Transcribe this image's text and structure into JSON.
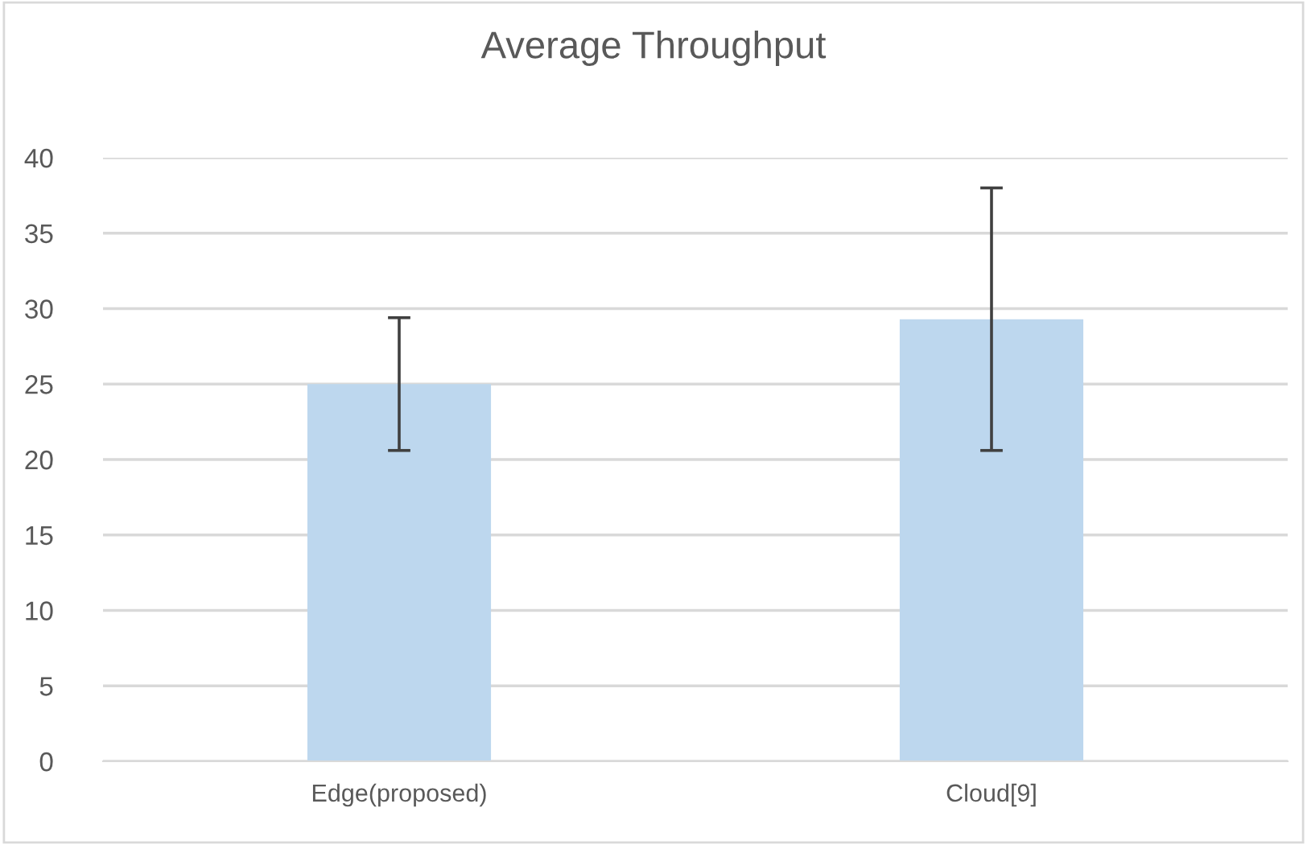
{
  "chart_data": {
    "type": "bar",
    "title": "Average Throughput",
    "categories": [
      "Edge(proposed)",
      "Cloud[9]"
    ],
    "values": [
      25.0,
      29.3
    ],
    "errors": [
      4.4,
      8.7
    ],
    "color": "#bdd7ee",
    "ylim": [
      0,
      40
    ],
    "yticks": [
      0,
      5,
      10,
      15,
      20,
      25,
      30,
      35,
      40
    ],
    "grid": "y"
  }
}
